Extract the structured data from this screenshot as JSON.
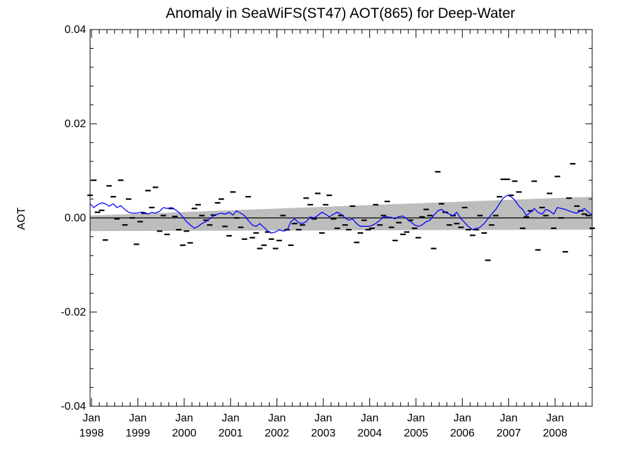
{
  "chart_data": {
    "type": "line",
    "title": "Anomaly in SeaWiFS(ST47) AOT(865) for Deep-Water",
    "xlabel": "",
    "ylabel": "AOT",
    "ylim": [
      -0.04,
      0.04
    ],
    "xlim": [
      1997.97,
      2008.8
    ],
    "yticks": [
      "0.04",
      "0.02",
      "0.00",
      "-0.02",
      "-0.04"
    ],
    "xticks": [
      {
        "month": "Jan",
        "year": "1998"
      },
      {
        "month": "Jan",
        "year": "1999"
      },
      {
        "month": "Jan",
        "year": "2000"
      },
      {
        "month": "Jan",
        "year": "2001"
      },
      {
        "month": "Jan",
        "year": "2002"
      },
      {
        "month": "Jan",
        "year": "2003"
      },
      {
        "month": "Jan",
        "year": "2004"
      },
      {
        "month": "Jan",
        "year": "2005"
      },
      {
        "month": "Jan",
        "year": "2006"
      },
      {
        "month": "Jan",
        "year": "2007"
      },
      {
        "month": "Jan",
        "year": "2008"
      }
    ],
    "zero_line": 0.0,
    "confidence_band": {
      "x": [
        1997.97,
        2008.8
      ],
      "upper": [
        0.0005,
        0.0045
      ],
      "lower": [
        -0.0028,
        -0.0025
      ]
    },
    "monthly_anomalies": {
      "x": [
        1997.97,
        1998.05,
        1998.13,
        1998.22,
        1998.3,
        1998.38,
        1998.47,
        1998.55,
        1998.63,
        1998.72,
        1998.8,
        1998.88,
        1998.97,
        1999.05,
        1999.13,
        1999.22,
        1999.3,
        1999.38,
        1999.47,
        1999.55,
        1999.63,
        1999.72,
        1999.8,
        1999.88,
        1999.97,
        2000.05,
        2000.13,
        2000.22,
        2000.3,
        2000.38,
        2000.47,
        2000.55,
        2000.63,
        2000.72,
        2000.8,
        2000.88,
        2000.97,
        2001.05,
        2001.13,
        2001.22,
        2001.3,
        2001.38,
        2001.47,
        2001.55,
        2001.63,
        2001.72,
        2001.8,
        2001.88,
        2001.97,
        2002.05,
        2002.13,
        2002.22,
        2002.3,
        2002.38,
        2002.47,
        2002.55,
        2002.63,
        2002.72,
        2002.8,
        2002.88,
        2002.97,
        2003.05,
        2003.13,
        2003.22,
        2003.3,
        2003.38,
        2003.47,
        2003.55,
        2003.63,
        2003.72,
        2003.8,
        2003.88,
        2003.97,
        2004.05,
        2004.13,
        2004.22,
        2004.3,
        2004.38,
        2004.47,
        2004.55,
        2004.63,
        2004.72,
        2004.8,
        2004.88,
        2004.97,
        2005.05,
        2005.13,
        2005.22,
        2005.3,
        2005.38,
        2005.47,
        2005.55,
        2005.63,
        2005.72,
        2005.8,
        2005.88,
        2005.97,
        2006.05,
        2006.13,
        2006.22,
        2006.3,
        2006.38,
        2006.47,
        2006.55,
        2006.63,
        2006.72,
        2006.8,
        2006.88,
        2006.97,
        2007.05,
        2007.13,
        2007.22,
        2007.3,
        2007.38,
        2007.47,
        2007.55,
        2007.63,
        2007.72,
        2007.8,
        2007.88,
        2007.97,
        2008.05,
        2008.13,
        2008.22,
        2008.3,
        2008.38,
        2008.47,
        2008.55,
        2008.63,
        2008.72,
        2008.8
      ],
      "y": [
        0.0048,
        0.008,
        0.0012,
        0.0016,
        -0.0047,
        0.0068,
        0.0045,
        -0.0002,
        0.008,
        -0.0015,
        0.004,
        0.0,
        -0.0056,
        -0.0008,
        0.001,
        0.0058,
        0.0022,
        0.0065,
        -0.0028,
        0.0005,
        -0.0035,
        0.002,
        0.0003,
        -0.0025,
        -0.0058,
        -0.0028,
        -0.0053,
        0.002,
        0.0028,
        0.0005,
        -0.0005,
        -0.0015,
        0.0006,
        0.0032,
        0.004,
        -0.0018,
        -0.0038,
        0.0055,
        0.0,
        -0.002,
        -0.0045,
        0.0045,
        -0.0042,
        -0.0032,
        -0.0065,
        -0.0058,
        -0.003,
        -0.0045,
        -0.0065,
        -0.0048,
        0.0005,
        -0.0025,
        -0.0058,
        -0.0012,
        -0.0025,
        -0.0015,
        0.0042,
        0.0028,
        -0.0002,
        0.0052,
        -0.0032,
        0.0028,
        0.0048,
        -0.0002,
        -0.0022,
        0.0005,
        -0.0015,
        -0.0025,
        0.0025,
        -0.0052,
        -0.0032,
        -0.0005,
        -0.0025,
        -0.0022,
        0.0028,
        -0.0015,
        0.0005,
        0.0035,
        -0.002,
        -0.0048,
        -0.001,
        -0.0035,
        -0.003,
        -0.0005,
        -0.0022,
        -0.0042,
        0.0002,
        0.0018,
        0.0005,
        -0.0065,
        0.0098,
        0.003,
        0.0012,
        -0.0015,
        0.0005,
        -0.0012,
        -0.002,
        0.0022,
        -0.0025,
        -0.0037,
        -0.0025,
        0.0005,
        -0.0032,
        -0.009,
        -0.0015,
        0.0005,
        0.0045,
        0.0082,
        0.0082,
        0.0048,
        0.0078,
        0.0055,
        -0.0022,
        0.0002,
        0.0015,
        0.0078,
        -0.0068,
        0.0022,
        0.0005,
        0.0052,
        -0.0022,
        0.0088,
        0.0,
        -0.0072,
        0.0042,
        0.0115,
        0.0025,
        0.0015,
        0.0008,
        0.0005,
        -0.0022
      ]
    },
    "running_mean": {
      "name": "",
      "color": "#0000ff",
      "x": [
        1997.97,
        1998.05,
        1998.13,
        1998.22,
        1998.3,
        1998.38,
        1998.47,
        1998.55,
        1998.63,
        1998.72,
        1998.8,
        1998.88,
        1998.97,
        1999.05,
        1999.13,
        1999.22,
        1999.3,
        1999.38,
        1999.47,
        1999.55,
        1999.63,
        1999.72,
        1999.8,
        1999.88,
        1999.97,
        2000.05,
        2000.13,
        2000.22,
        2000.3,
        2000.38,
        2000.47,
        2000.55,
        2000.63,
        2000.72,
        2000.8,
        2000.88,
        2000.97,
        2001.05,
        2001.13,
        2001.22,
        2001.3,
        2001.38,
        2001.47,
        2001.55,
        2001.63,
        2001.72,
        2001.8,
        2001.88,
        2001.97,
        2002.05,
        2002.13,
        2002.22,
        2002.3,
        2002.38,
        2002.47,
        2002.55,
        2002.63,
        2002.72,
        2002.8,
        2002.88,
        2002.97,
        2003.05,
        2003.13,
        2003.22,
        2003.3,
        2003.38,
        2003.47,
        2003.55,
        2003.63,
        2003.72,
        2003.8,
        2003.88,
        2003.97,
        2004.05,
        2004.13,
        2004.22,
        2004.3,
        2004.38,
        2004.47,
        2004.55,
        2004.63,
        2004.72,
        2004.8,
        2004.88,
        2004.97,
        2005.05,
        2005.13,
        2005.22,
        2005.3,
        2005.38,
        2005.47,
        2005.55,
        2005.63,
        2005.72,
        2005.8,
        2005.88,
        2005.97,
        2006.05,
        2006.13,
        2006.22,
        2006.3,
        2006.38,
        2006.47,
        2006.55,
        2006.63,
        2006.72,
        2006.8,
        2006.88,
        2006.97,
        2007.05,
        2007.13,
        2007.22,
        2007.3,
        2007.38,
        2007.47,
        2007.55,
        2007.63,
        2007.72,
        2007.8,
        2007.88,
        2007.97,
        2008.05,
        2008.13,
        2008.22,
        2008.3,
        2008.38,
        2008.47,
        2008.55,
        2008.63,
        2008.72,
        2008.8
      ],
      "y": [
        0.003,
        0.0022,
        0.0028,
        0.0032,
        0.003,
        0.0025,
        0.003,
        0.0022,
        0.0026,
        0.0018,
        0.0012,
        0.001,
        0.001,
        0.0012,
        0.0012,
        0.0008,
        0.0012,
        0.001,
        0.0014,
        0.0022,
        0.002,
        0.0022,
        0.0018,
        0.0012,
        0.0002,
        -0.0008,
        -0.0015,
        -0.0022,
        -0.0018,
        -0.0012,
        -0.0008,
        -0.0002,
        0.0004,
        0.0008,
        0.001,
        0.0008,
        0.0012,
        0.0006,
        0.0015,
        0.001,
        0.0005,
        -0.0005,
        -0.0015,
        -0.0018,
        -0.0012,
        -0.002,
        -0.0028,
        -0.0032,
        -0.003,
        -0.0025,
        -0.0028,
        -0.0026,
        -0.0008,
        -0.0002,
        -0.001,
        -0.0012,
        -0.0008,
        0.0002,
        0.0,
        0.0005,
        0.0012,
        0.0008,
        0.0002,
        0.0008,
        0.0012,
        0.0008,
        0.0,
        -0.0005,
        -0.0002,
        -0.0012,
        -0.0018,
        -0.0018,
        -0.0018,
        -0.0016,
        -0.0012,
        -0.0005,
        0.0002,
        0.0002,
        0.0001,
        -0.0002,
        0.0003,
        0.0004,
        -0.0002,
        -0.0008,
        -0.0015,
        -0.0018,
        -0.0015,
        -0.0008,
        -0.0005,
        0.0005,
        0.0015,
        0.0018,
        0.0012,
        0.0008,
        0.0005,
        0.0012,
        -0.0002,
        -0.001,
        -0.0018,
        -0.0025,
        -0.0022,
        -0.002,
        -0.0012,
        -0.0002,
        0.0008,
        0.0018,
        0.003,
        0.0042,
        0.0048,
        0.0045,
        0.0038,
        0.0025,
        0.0018,
        0.0005,
        0.0012,
        0.002,
        0.0012,
        0.0008,
        0.0018,
        0.0015,
        0.0008,
        0.0022,
        0.002,
        0.0018,
        0.0015,
        0.0012,
        0.001,
        0.0015,
        0.002,
        0.0012,
        0.0006
      ]
    }
  }
}
